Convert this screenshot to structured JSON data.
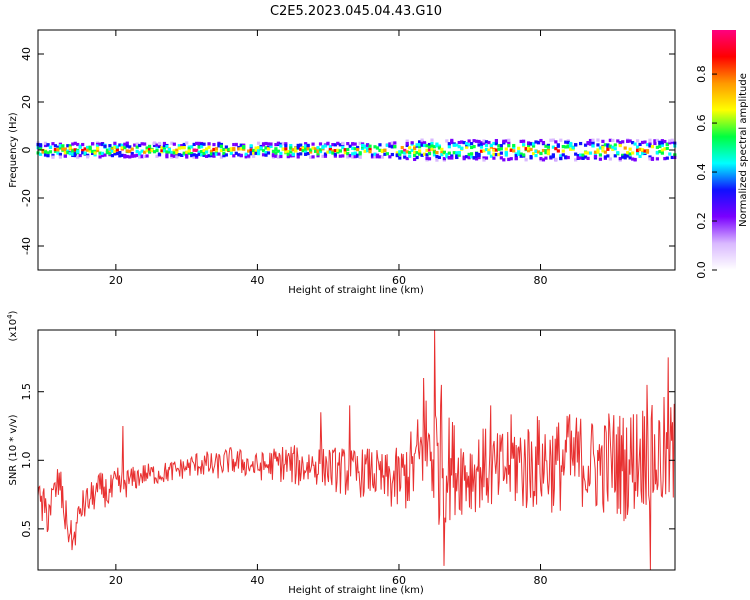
{
  "title": "C2E5.2023.045.04.43.G10",
  "chart_data": [
    {
      "type": "heatmap",
      "xlabel": "Height of straight line (km)",
      "ylabel": "Frequency (Hz)",
      "xlim": [
        9,
        99
      ],
      "ylim": [
        -50,
        50
      ],
      "x_ticks": [
        20,
        40,
        60,
        80
      ],
      "y_ticks": [
        -40,
        -20,
        0,
        20,
        40
      ],
      "band": {
        "center_hz": 0,
        "half_width_hz": 3,
        "x_from": 9,
        "x_to": 99
      },
      "colorbar": {
        "label": "Normalized spectral amplitude",
        "range": [
          0,
          0.98
        ],
        "ticks": [
          "0.0",
          "0.2",
          "0.4",
          "0.6",
          "0.8"
        ],
        "tick_values": [
          0,
          0.2,
          0.4,
          0.6,
          0.8
        ],
        "colors": [
          "#ffffff",
          "#d9b8ff",
          "#7a00ff",
          "#1010ff",
          "#00ffff",
          "#00ff40",
          "#ffff00",
          "#ff9900",
          "#ff0000",
          "#ff007f"
        ]
      }
    },
    {
      "type": "line",
      "xlabel": "Height of straight line (km)",
      "ylabel": "SNR (10 * v/v)",
      "y_multiplier": "(x10",
      "y_multiplier_exp": "4",
      "y_multiplier_close": ")",
      "xlim": [
        9,
        99
      ],
      "ylim": [
        0.2,
        1.95
      ],
      "x_ticks": [
        20,
        40,
        60,
        80
      ],
      "y_ticks": [
        0.5,
        1.0,
        1.5
      ],
      "y_tick_labels": [
        "0.5",
        "1.0",
        "1.5"
      ],
      "color": "#e83030",
      "series": [
        {
          "x": [
            9,
            10,
            11,
            12,
            13,
            14,
            15,
            16,
            17,
            18,
            19,
            20,
            22,
            24,
            26,
            28,
            30,
            32,
            34,
            36,
            38,
            40,
            42,
            44,
            46,
            48,
            50,
            52,
            54,
            56,
            58,
            60,
            62,
            64,
            65,
            66,
            68,
            70,
            72,
            74,
            76,
            78,
            80,
            82,
            84,
            86,
            88,
            90,
            92,
            94,
            96,
            98,
            99
          ],
          "y": [
            0.75,
            0.6,
            0.7,
            0.85,
            0.55,
            0.4,
            0.65,
            0.7,
            0.75,
            0.8,
            0.75,
            0.8,
            0.85,
            0.9,
            0.9,
            0.92,
            0.95,
            0.98,
            0.95,
            1.0,
            0.98,
            0.95,
            0.97,
            0.98,
            0.95,
            0.97,
            0.95,
            0.92,
            0.9,
            0.92,
            0.85,
            0.85,
            0.95,
            1.1,
            1.05,
            0.95,
            0.95,
            0.9,
            0.95,
            0.9,
            1.0,
            0.95,
            1.0,
            0.95,
            1.0,
            1.0,
            0.95,
            1.0,
            0.95,
            1.05,
            1.0,
            1.05,
            1.0
          ],
          "amplitude": [
            0.08,
            0.2,
            0.15,
            0.15,
            0.15,
            0.1,
            0.12,
            0.12,
            0.12,
            0.12,
            0.12,
            0.15,
            0.1,
            0.08,
            0.08,
            0.08,
            0.08,
            0.1,
            0.1,
            0.1,
            0.1,
            0.1,
            0.12,
            0.15,
            0.15,
            0.15,
            0.15,
            0.18,
            0.18,
            0.18,
            0.2,
            0.25,
            0.3,
            0.45,
            0.5,
            0.45,
            0.35,
            0.3,
            0.3,
            0.3,
            0.35,
            0.35,
            0.35,
            0.35,
            0.35,
            0.35,
            0.35,
            0.4,
            0.4,
            0.4,
            0.4,
            0.45,
            0.45
          ]
        }
      ],
      "peaks": [
        {
          "x": 21,
          "y": 1.25
        },
        {
          "x": 49,
          "y": 1.35
        },
        {
          "x": 53,
          "y": 1.4
        },
        {
          "x": 63.5,
          "y": 1.6
        },
        {
          "x": 65,
          "y": 1.95
        },
        {
          "x": 66,
          "y": 1.55
        },
        {
          "x": 66.3,
          "y": 0.23
        },
        {
          "x": 73,
          "y": 1.4
        },
        {
          "x": 84,
          "y": 1.3
        },
        {
          "x": 89,
          "y": 1.25
        },
        {
          "x": 95,
          "y": 1.55
        },
        {
          "x": 95.5,
          "y": 0.2
        },
        {
          "x": 98,
          "y": 1.75
        },
        {
          "x": 99,
          "y": 1.6
        }
      ]
    }
  ]
}
